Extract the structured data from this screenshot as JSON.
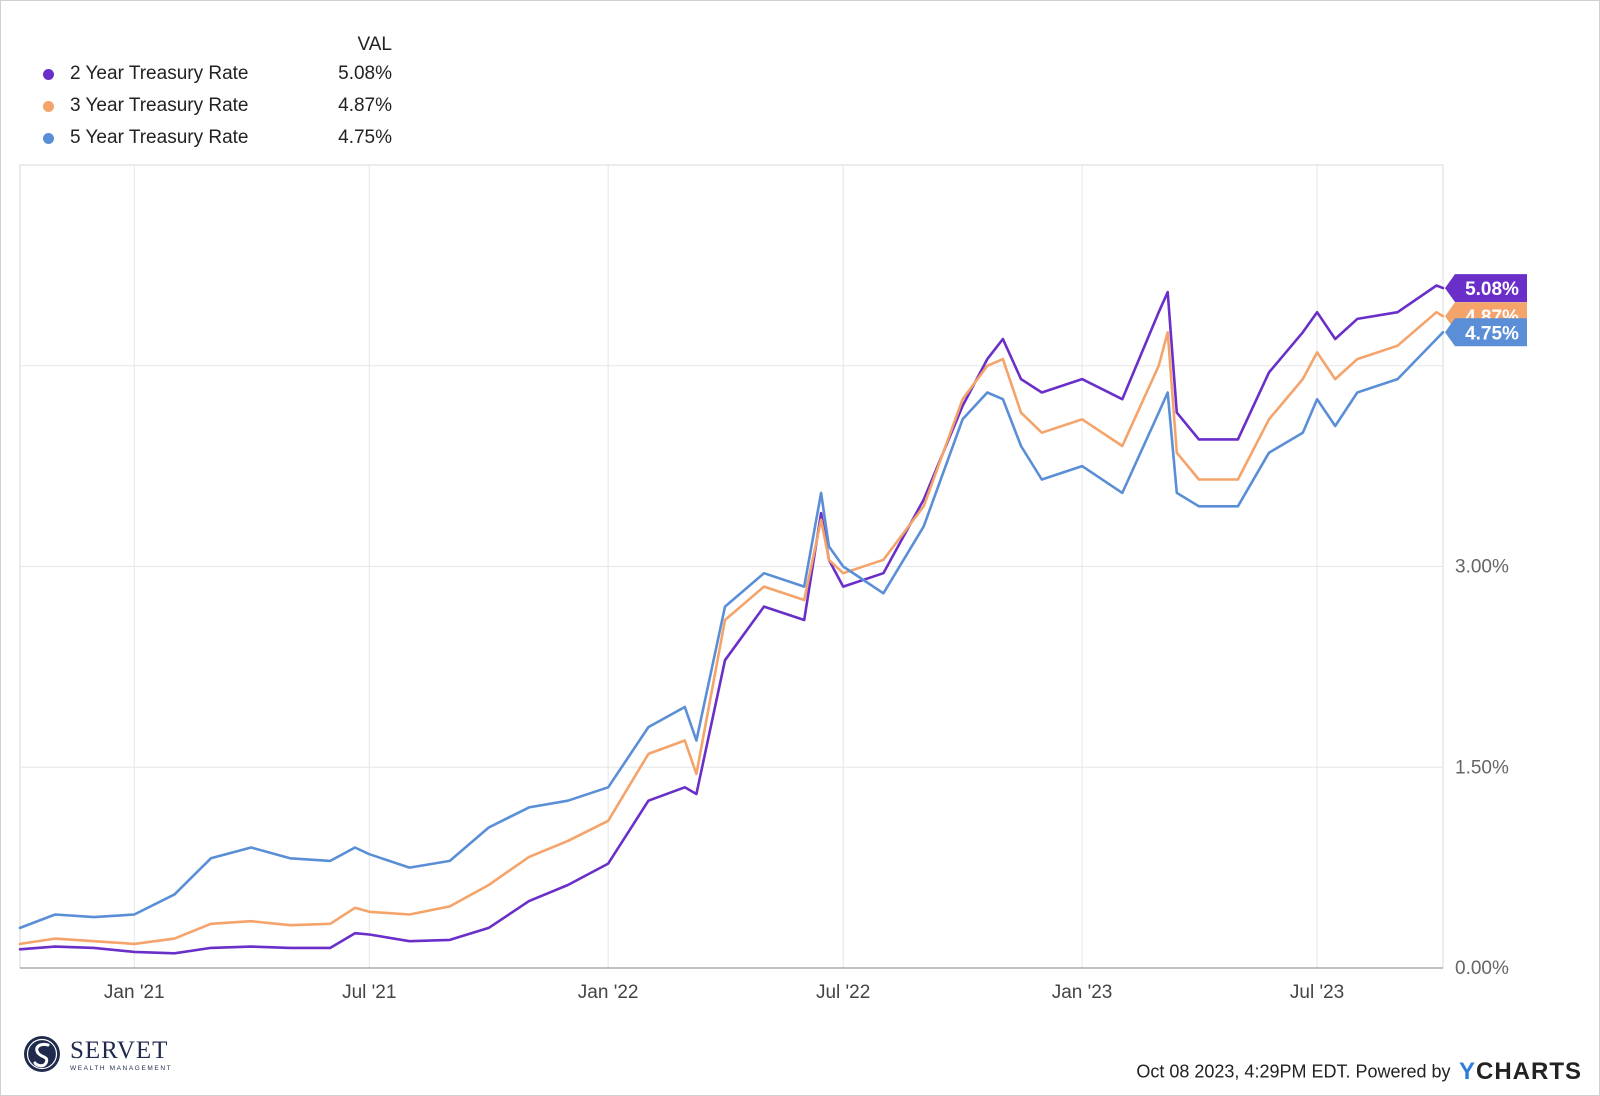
{
  "legend": {
    "header": "VAL",
    "items": [
      {
        "name": "2 Year Treasury Rate",
        "value": "5.08%",
        "color": "#6a2fc8"
      },
      {
        "name": "3 Year Treasury Rate",
        "value": "4.87%",
        "color": "#f4a46a"
      },
      {
        "name": "5 Year Treasury Rate",
        "value": "4.75%",
        "color": "#5a8ed6"
      }
    ]
  },
  "footer": {
    "brand": "SERVET",
    "brand_sub": "WEALTH MANAGEMENT",
    "timestamp": "Oct 08 2023, 4:29PM EDT. Powered by",
    "powered_logo": "YCHARTS"
  },
  "chart_data": {
    "type": "line",
    "title": "",
    "xlabel": "",
    "ylabel": "",
    "x_range": [
      "2020-10-05",
      "2023-10-06"
    ],
    "ylim": [
      0,
      6
    ],
    "y_ticks": [
      0,
      1.5,
      3.0
    ],
    "y_tick_labels": [
      "0.00%",
      "1.50%",
      "3.00%"
    ],
    "x_ticks": [
      "2021-01-01",
      "2021-07-01",
      "2022-01-01",
      "2022-07-01",
      "2023-01-01",
      "2023-07-01"
    ],
    "x_tick_labels": [
      "Jan '21",
      "Jul '21",
      "Jan '22",
      "Jul '22",
      "Jan '23",
      "Jul '23"
    ],
    "grid": true,
    "legend_position": "top-left",
    "end_labels": [
      "5.08%",
      "4.87%",
      "4.75%"
    ],
    "series": [
      {
        "name": "2 Year Treasury Rate",
        "color": "#6a2fc8",
        "points": [
          [
            "2020-10-05",
            0.14
          ],
          [
            "2020-11-01",
            0.16
          ],
          [
            "2020-12-01",
            0.15
          ],
          [
            "2021-01-01",
            0.12
          ],
          [
            "2021-02-01",
            0.11
          ],
          [
            "2021-03-01",
            0.15
          ],
          [
            "2021-04-01",
            0.16
          ],
          [
            "2021-05-01",
            0.15
          ],
          [
            "2021-06-01",
            0.15
          ],
          [
            "2021-06-20",
            0.26
          ],
          [
            "2021-07-01",
            0.25
          ],
          [
            "2021-08-01",
            0.2
          ],
          [
            "2021-09-01",
            0.21
          ],
          [
            "2021-10-01",
            0.3
          ],
          [
            "2021-11-01",
            0.5
          ],
          [
            "2021-12-01",
            0.62
          ],
          [
            "2022-01-01",
            0.78
          ],
          [
            "2022-02-01",
            1.25
          ],
          [
            "2022-03-01",
            1.35
          ],
          [
            "2022-03-10",
            1.3
          ],
          [
            "2022-04-01",
            2.3
          ],
          [
            "2022-05-01",
            2.7
          ],
          [
            "2022-06-01",
            2.6
          ],
          [
            "2022-06-14",
            3.4
          ],
          [
            "2022-06-20",
            3.05
          ],
          [
            "2022-07-01",
            2.85
          ],
          [
            "2022-08-01",
            2.95
          ],
          [
            "2022-09-01",
            3.5
          ],
          [
            "2022-10-01",
            4.2
          ],
          [
            "2022-10-20",
            4.55
          ],
          [
            "2022-11-01",
            4.7
          ],
          [
            "2022-11-15",
            4.4
          ],
          [
            "2022-12-01",
            4.3
          ],
          [
            "2023-01-01",
            4.4
          ],
          [
            "2023-02-01",
            4.25
          ],
          [
            "2023-03-01",
            4.9
          ],
          [
            "2023-03-08",
            5.05
          ],
          [
            "2023-03-15",
            4.15
          ],
          [
            "2023-04-01",
            3.95
          ],
          [
            "2023-05-01",
            3.95
          ],
          [
            "2023-05-25",
            4.45
          ],
          [
            "2023-06-20",
            4.75
          ],
          [
            "2023-07-01",
            4.9
          ],
          [
            "2023-07-15",
            4.7
          ],
          [
            "2023-08-01",
            4.85
          ],
          [
            "2023-09-01",
            4.9
          ],
          [
            "2023-10-01",
            5.1
          ],
          [
            "2023-10-06",
            5.08
          ]
        ]
      },
      {
        "name": "3 Year Treasury Rate",
        "color": "#f4a46a",
        "points": [
          [
            "2020-10-05",
            0.18
          ],
          [
            "2020-11-01",
            0.22
          ],
          [
            "2020-12-01",
            0.2
          ],
          [
            "2021-01-01",
            0.18
          ],
          [
            "2021-02-01",
            0.22
          ],
          [
            "2021-03-01",
            0.33
          ],
          [
            "2021-04-01",
            0.35
          ],
          [
            "2021-05-01",
            0.32
          ],
          [
            "2021-06-01",
            0.33
          ],
          [
            "2021-06-20",
            0.45
          ],
          [
            "2021-07-01",
            0.42
          ],
          [
            "2021-08-01",
            0.4
          ],
          [
            "2021-09-01",
            0.46
          ],
          [
            "2021-10-01",
            0.62
          ],
          [
            "2021-11-01",
            0.83
          ],
          [
            "2021-12-01",
            0.95
          ],
          [
            "2022-01-01",
            1.1
          ],
          [
            "2022-02-01",
            1.6
          ],
          [
            "2022-03-01",
            1.7
          ],
          [
            "2022-03-10",
            1.45
          ],
          [
            "2022-04-01",
            2.6
          ],
          [
            "2022-05-01",
            2.85
          ],
          [
            "2022-06-01",
            2.75
          ],
          [
            "2022-06-14",
            3.35
          ],
          [
            "2022-06-20",
            3.05
          ],
          [
            "2022-07-01",
            2.95
          ],
          [
            "2022-08-01",
            3.05
          ],
          [
            "2022-09-01",
            3.45
          ],
          [
            "2022-10-01",
            4.25
          ],
          [
            "2022-10-20",
            4.5
          ],
          [
            "2022-11-01",
            4.55
          ],
          [
            "2022-11-15",
            4.15
          ],
          [
            "2022-12-01",
            4.0
          ],
          [
            "2023-01-01",
            4.1
          ],
          [
            "2023-02-01",
            3.9
          ],
          [
            "2023-03-01",
            4.5
          ],
          [
            "2023-03-08",
            4.75
          ],
          [
            "2023-03-15",
            3.85
          ],
          [
            "2023-04-01",
            3.65
          ],
          [
            "2023-05-01",
            3.65
          ],
          [
            "2023-05-25",
            4.1
          ],
          [
            "2023-06-20",
            4.4
          ],
          [
            "2023-07-01",
            4.6
          ],
          [
            "2023-07-15",
            4.4
          ],
          [
            "2023-08-01",
            4.55
          ],
          [
            "2023-09-01",
            4.65
          ],
          [
            "2023-10-01",
            4.9
          ],
          [
            "2023-10-06",
            4.87
          ]
        ]
      },
      {
        "name": "5 Year Treasury Rate",
        "color": "#5a8ed6",
        "points": [
          [
            "2020-10-05",
            0.3
          ],
          [
            "2020-11-01",
            0.4
          ],
          [
            "2020-12-01",
            0.38
          ],
          [
            "2021-01-01",
            0.4
          ],
          [
            "2021-02-01",
            0.55
          ],
          [
            "2021-03-01",
            0.82
          ],
          [
            "2021-04-01",
            0.9
          ],
          [
            "2021-05-01",
            0.82
          ],
          [
            "2021-06-01",
            0.8
          ],
          [
            "2021-06-20",
            0.9
          ],
          [
            "2021-07-01",
            0.85
          ],
          [
            "2021-08-01",
            0.75
          ],
          [
            "2021-09-01",
            0.8
          ],
          [
            "2021-10-01",
            1.05
          ],
          [
            "2021-11-01",
            1.2
          ],
          [
            "2021-12-01",
            1.25
          ],
          [
            "2022-01-01",
            1.35
          ],
          [
            "2022-02-01",
            1.8
          ],
          [
            "2022-03-01",
            1.95
          ],
          [
            "2022-03-10",
            1.7
          ],
          [
            "2022-04-01",
            2.7
          ],
          [
            "2022-05-01",
            2.95
          ],
          [
            "2022-06-01",
            2.85
          ],
          [
            "2022-06-14",
            3.55
          ],
          [
            "2022-06-20",
            3.15
          ],
          [
            "2022-07-01",
            3.0
          ],
          [
            "2022-08-01",
            2.8
          ],
          [
            "2022-09-01",
            3.3
          ],
          [
            "2022-10-01",
            4.1
          ],
          [
            "2022-10-20",
            4.3
          ],
          [
            "2022-11-01",
            4.25
          ],
          [
            "2022-11-15",
            3.9
          ],
          [
            "2022-12-01",
            3.65
          ],
          [
            "2023-01-01",
            3.75
          ],
          [
            "2023-02-01",
            3.55
          ],
          [
            "2023-03-01",
            4.15
          ],
          [
            "2023-03-08",
            4.3
          ],
          [
            "2023-03-15",
            3.55
          ],
          [
            "2023-04-01",
            3.45
          ],
          [
            "2023-05-01",
            3.45
          ],
          [
            "2023-05-25",
            3.85
          ],
          [
            "2023-06-20",
            4.0
          ],
          [
            "2023-07-01",
            4.25
          ],
          [
            "2023-07-15",
            4.05
          ],
          [
            "2023-08-01",
            4.3
          ],
          [
            "2023-09-01",
            4.4
          ],
          [
            "2023-10-01",
            4.7
          ],
          [
            "2023-10-06",
            4.75
          ]
        ]
      }
    ]
  }
}
